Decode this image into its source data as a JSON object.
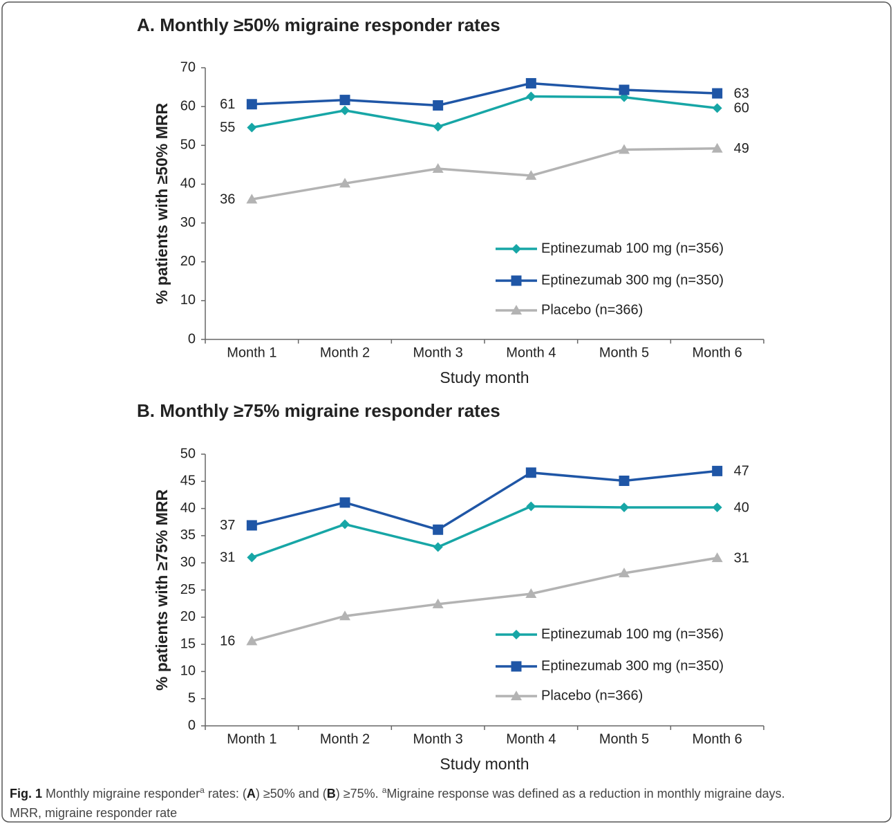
{
  "chart_data": [
    {
      "type": "line",
      "title": "A. Monthly ≥50% migraine responder rates",
      "xlabel": "Study month",
      "ylabel": "% patients with ≥50% MRR",
      "categories": [
        "Month 1",
        "Month 2",
        "Month 3",
        "Month 4",
        "Month 5",
        "Month 6"
      ],
      "ylim": [
        0,
        70
      ],
      "yticks": [
        0,
        10,
        20,
        30,
        40,
        50,
        60,
        70
      ],
      "legend": "lower right",
      "series": [
        {
          "name": "Eptinezumab 100 mg (n=356)",
          "color": "#17a6a6",
          "marker": "diamond",
          "values": [
            54.6,
            59,
            54.8,
            62.6,
            62.4,
            59.6
          ],
          "value_labels": [
            "55",
            null,
            null,
            null,
            null,
            "60"
          ]
        },
        {
          "name": "Eptinezumab 300 mg (n=350)",
          "color": "#1f56a6",
          "marker": "square",
          "values": [
            60.6,
            61.7,
            60.3,
            66,
            64.3,
            63.4
          ],
          "value_labels": [
            "61",
            null,
            null,
            null,
            null,
            "63"
          ]
        },
        {
          "name": "Placebo (n=366)",
          "color": "#b3b3b3",
          "marker": "triangle",
          "values": [
            36.1,
            40.2,
            44,
            42.2,
            48.9,
            49.2
          ],
          "value_labels": [
            "36",
            null,
            null,
            null,
            null,
            "49"
          ]
        }
      ]
    },
    {
      "type": "line",
      "title": "B. Monthly ≥75% migraine responder rates",
      "xlabel": "Study month",
      "ylabel": "% patients with ≥75% MRR",
      "categories": [
        "Month 1",
        "Month 2",
        "Month 3",
        "Month 4",
        "Month 5",
        "Month 6"
      ],
      "ylim": [
        0,
        50
      ],
      "yticks": [
        0,
        5,
        10,
        15,
        20,
        25,
        30,
        35,
        40,
        45,
        50
      ],
      "legend": "lower right",
      "series": [
        {
          "name": "Eptinezumab 100 mg (n=356)",
          "color": "#17a6a6",
          "marker": "diamond",
          "values": [
            31,
            37.1,
            32.9,
            40.4,
            40.2,
            40.2
          ],
          "value_labels": [
            "31",
            null,
            null,
            null,
            null,
            "40"
          ]
        },
        {
          "name": "Eptinezumab 300 mg (n=350)",
          "color": "#1f56a6",
          "marker": "square",
          "values": [
            36.9,
            41.1,
            36.1,
            46.6,
            45.1,
            46.9
          ],
          "value_labels": [
            "37",
            null,
            null,
            null,
            null,
            "47"
          ]
        },
        {
          "name": "Placebo (n=366)",
          "color": "#b3b3b3",
          "marker": "triangle",
          "values": [
            15.6,
            20.2,
            22.4,
            24.3,
            28.1,
            30.9
          ],
          "value_labels": [
            "16",
            null,
            null,
            null,
            null,
            "31"
          ]
        }
      ]
    }
  ],
  "caption": {
    "lines": [
      [
        {
          "text": "Fig. 1",
          "bold": true
        },
        {
          "text": " Monthly migraine responder"
        },
        {
          "text": "a",
          "sup": true
        },
        {
          "text": " rates: ("
        },
        {
          "text": "A",
          "bold": true
        },
        {
          "text": ") ≥50% and ("
        },
        {
          "text": "B",
          "bold": true
        },
        {
          "text": ") ≥75%. "
        },
        {
          "text": "a",
          "sup": true
        },
        {
          "text": "Migraine response was defined as a reduction in monthly migraine days."
        }
      ],
      [
        {
          "text": "MRR, migraine responder rate"
        }
      ]
    ]
  }
}
